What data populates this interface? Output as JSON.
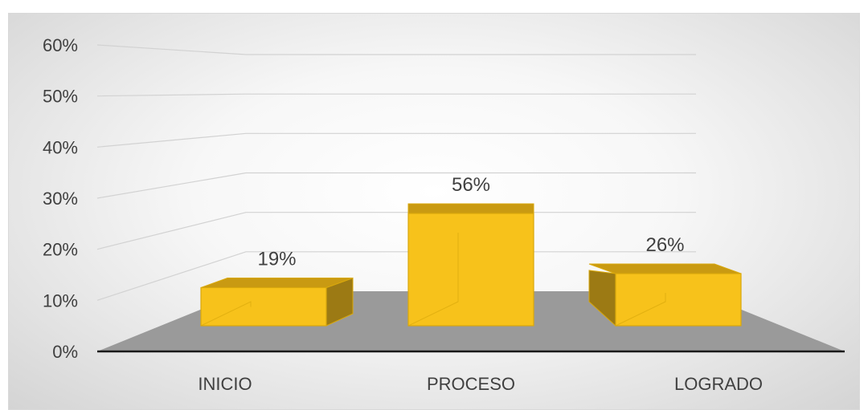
{
  "chart_data": {
    "type": "bar",
    "categories": [
      "INICIO",
      "PROCESO",
      "LOGRADO"
    ],
    "values": [
      19,
      56,
      26
    ],
    "data_labels": [
      "19%",
      "56%",
      "26%"
    ],
    "ylim": [
      0,
      60
    ],
    "y_ticks": [
      "0%",
      "10%",
      "20%",
      "30%",
      "40%",
      "50%",
      "60%"
    ],
    "grid": true,
    "legend": "none",
    "colors": {
      "front": "#f7c21b",
      "side": "#9c7a14",
      "top": "#c99a12",
      "edge": "#d9a80c",
      "floor": "#9a9a9a",
      "grid": "#d2d2d2",
      "axis": "#1a1a1a"
    }
  }
}
